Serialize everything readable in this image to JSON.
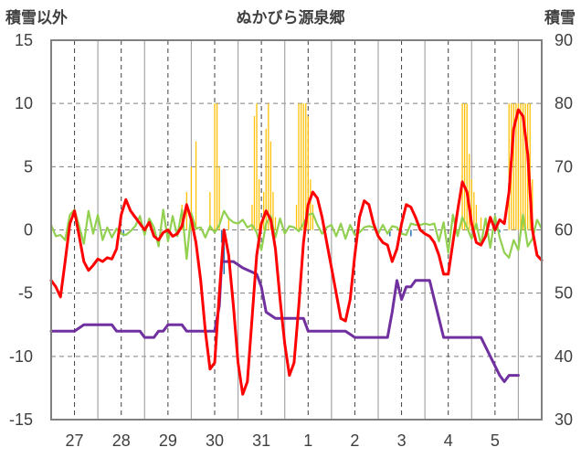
{
  "chart_data": {
    "type": "line",
    "title": "ぬかびら源泉郷",
    "y_left_label": "積雪以外",
    "y_right_label": "積雪",
    "y_left_ticks": [
      "15",
      "10",
      "5",
      "0",
      "-5",
      "-10",
      "-15"
    ],
    "y_right_ticks": [
      "90",
      "80",
      "70",
      "60",
      "50",
      "40",
      "30"
    ],
    "ylim_left": [
      -15,
      15
    ],
    "ylim_right": [
      30,
      90
    ],
    "x_tick_labels": [
      "27",
      "28",
      "29",
      "30",
      "31",
      "1",
      "2",
      "3",
      "4",
      "5"
    ],
    "xlim": [
      26.5,
      37.0
    ],
    "grid": true,
    "legend": "none",
    "colors": {
      "temperature": "#ff0000",
      "wind": "#92d050",
      "snow_depth": "#7030a0",
      "precipitation": "#ffc000",
      "negative_bars": "#2e75b6",
      "grid": "#808080",
      "frame": "#808080"
    },
    "series": [
      {
        "key": "temperature",
        "axis": "left",
        "points": [
          [
            26.5,
            -4
          ],
          [
            26.6,
            -4.5
          ],
          [
            26.7,
            -5.3
          ],
          [
            26.8,
            -2.5
          ],
          [
            26.9,
            0.5
          ],
          [
            27.0,
            1.5
          ],
          [
            27.1,
            -0.5
          ],
          [
            27.2,
            -2.5
          ],
          [
            27.3,
            -3.2
          ],
          [
            27.4,
            -2.8
          ],
          [
            27.5,
            -2.3
          ],
          [
            27.6,
            -2.5
          ],
          [
            27.7,
            -2.2
          ],
          [
            27.8,
            -2.3
          ],
          [
            27.9,
            -1.5
          ],
          [
            28.0,
            1.2
          ],
          [
            28.1,
            2.4
          ],
          [
            28.2,
            1.5
          ],
          [
            28.3,
            1
          ],
          [
            28.4,
            0.5
          ],
          [
            28.5,
            0
          ],
          [
            28.6,
            0.6
          ],
          [
            28.7,
            -0.5
          ],
          [
            28.8,
            -0.8
          ],
          [
            28.9,
            -0.2
          ],
          [
            29.0,
            0
          ],
          [
            29.1,
            -0.5
          ],
          [
            29.2,
            -0.3
          ],
          [
            29.3,
            0.3
          ],
          [
            29.4,
            2
          ],
          [
            29.5,
            0.8
          ],
          [
            29.6,
            -1
          ],
          [
            29.7,
            -4
          ],
          [
            29.8,
            -8
          ],
          [
            29.9,
            -11
          ],
          [
            30.0,
            -10.5
          ],
          [
            30.1,
            -5
          ],
          [
            30.2,
            0
          ],
          [
            30.3,
            -2
          ],
          [
            30.4,
            -6
          ],
          [
            30.5,
            -10.5
          ],
          [
            30.6,
            -13
          ],
          [
            30.7,
            -12
          ],
          [
            30.8,
            -7
          ],
          [
            30.9,
            -2
          ],
          [
            31.0,
            0.5
          ],
          [
            31.1,
            1.5
          ],
          [
            31.2,
            0.8
          ],
          [
            31.3,
            -1.5
          ],
          [
            31.4,
            -5.5
          ],
          [
            31.5,
            -9
          ],
          [
            31.6,
            -11.5
          ],
          [
            31.7,
            -10.5
          ],
          [
            31.8,
            -6
          ],
          [
            31.9,
            -1
          ],
          [
            32.0,
            2
          ],
          [
            32.1,
            3
          ],
          [
            32.2,
            2.5
          ],
          [
            32.3,
            1
          ],
          [
            32.4,
            -1
          ],
          [
            32.5,
            -3
          ],
          [
            32.6,
            -5
          ],
          [
            32.7,
            -7
          ],
          [
            32.8,
            -7.2
          ],
          [
            32.9,
            -5.5
          ],
          [
            33.0,
            -2
          ],
          [
            33.1,
            1
          ],
          [
            33.2,
            2.3
          ],
          [
            33.3,
            2
          ],
          [
            33.4,
            0.5
          ],
          [
            33.5,
            -0.5
          ],
          [
            33.6,
            -1
          ],
          [
            33.7,
            -1.2
          ],
          [
            33.8,
            -2.5
          ],
          [
            33.9,
            -1.5
          ],
          [
            34.0,
            0.5
          ],
          [
            34.1,
            2
          ],
          [
            34.2,
            1.8
          ],
          [
            34.3,
            1
          ],
          [
            34.4,
            0
          ],
          [
            34.5,
            -0.3
          ],
          [
            34.6,
            -0.5
          ],
          [
            34.7,
            -1
          ],
          [
            34.8,
            -2
          ],
          [
            34.9,
            -3.5
          ],
          [
            35.0,
            -3.5
          ],
          [
            35.1,
            -1
          ],
          [
            35.2,
            1.5
          ],
          [
            35.3,
            3.8
          ],
          [
            35.4,
            3
          ],
          [
            35.5,
            0.5
          ],
          [
            35.6,
            -1
          ],
          [
            35.7,
            -1.2
          ],
          [
            35.8,
            -0.5
          ],
          [
            35.9,
            1
          ],
          [
            36.0,
            0
          ],
          [
            36.1,
            0.8
          ],
          [
            36.2,
            0.5
          ],
          [
            36.3,
            3
          ],
          [
            36.4,
            8
          ],
          [
            36.5,
            9.5
          ],
          [
            36.6,
            9
          ],
          [
            36.7,
            6
          ],
          [
            36.8,
            0
          ],
          [
            36.9,
            -2
          ],
          [
            37.0,
            -2.4
          ]
        ]
      },
      {
        "key": "wind",
        "axis": "left",
        "points": [
          [
            26.5,
            0.4
          ],
          [
            26.6,
            -0.5
          ],
          [
            26.7,
            -0.4
          ],
          [
            26.8,
            -0.8
          ],
          [
            26.9,
            1.2
          ],
          [
            27.0,
            1.6
          ],
          [
            27.1,
            0.3
          ],
          [
            27.2,
            -1.1
          ],
          [
            27.3,
            1.5
          ],
          [
            27.4,
            -0.3
          ],
          [
            27.5,
            1.2
          ],
          [
            27.6,
            -0.8
          ],
          [
            27.7,
            0.2
          ],
          [
            27.8,
            -0.6
          ],
          [
            27.9,
            0.1
          ],
          [
            28.0,
            -0.3
          ],
          [
            28.1,
            -0.4
          ],
          [
            28.2,
            -0.1
          ],
          [
            28.3,
            0.3
          ],
          [
            28.4,
            1.1
          ],
          [
            28.5,
            -0.4
          ],
          [
            28.6,
            0.9
          ],
          [
            28.7,
            0.2
          ],
          [
            28.8,
            -1.3
          ],
          [
            28.9,
            1.6
          ],
          [
            29.0,
            -0.9
          ],
          [
            29.1,
            1.1
          ],
          [
            29.2,
            -0.5
          ],
          [
            29.3,
            1.6
          ],
          [
            29.4,
            -2.3
          ],
          [
            29.5,
            1.3
          ],
          [
            29.6,
            0.1
          ],
          [
            29.7,
            0.2
          ],
          [
            29.8,
            -0.6
          ],
          [
            29.9,
            0.3
          ],
          [
            30.0,
            -0.2
          ],
          [
            30.1,
            0.4
          ],
          [
            30.2,
            1.5
          ],
          [
            30.3,
            0.9
          ],
          [
            30.4,
            0.6
          ],
          [
            30.5,
            0.5
          ],
          [
            30.6,
            0.8
          ],
          [
            30.7,
            0.2
          ],
          [
            30.8,
            0.4
          ],
          [
            30.9,
            -0.2
          ],
          [
            31.0,
            -1.6
          ],
          [
            31.1,
            0.5
          ],
          [
            31.2,
            1.1
          ],
          [
            31.3,
            -0.6
          ],
          [
            31.4,
            0.9
          ],
          [
            31.5,
            -0.3
          ],
          [
            31.6,
            0.3
          ],
          [
            31.7,
            0.2
          ],
          [
            31.8,
            -0.1
          ],
          [
            31.9,
            0.5
          ],
          [
            32.0,
            1.2
          ],
          [
            32.1,
            1.3
          ],
          [
            32.2,
            0.4
          ],
          [
            32.3,
            -0.3
          ],
          [
            32.4,
            0.2
          ],
          [
            32.5,
            0.4
          ],
          [
            32.6,
            -0.5
          ],
          [
            32.7,
            0.5
          ],
          [
            32.8,
            -0.7
          ],
          [
            32.9,
            0.4
          ],
          [
            33.0,
            -0.4
          ],
          [
            33.1,
            -0.2
          ],
          [
            33.2,
            0.2
          ],
          [
            33.3,
            0.3
          ],
          [
            33.4,
            0.2
          ],
          [
            33.5,
            -0.3
          ],
          [
            33.6,
            0.4
          ],
          [
            33.7,
            -0.3
          ],
          [
            33.8,
            0.3
          ],
          [
            33.9,
            0.2
          ],
          [
            34.0,
            -0.3
          ],
          [
            34.1,
            -0.4
          ],
          [
            34.2,
            0.5
          ],
          [
            34.3,
            0.4
          ],
          [
            34.4,
            0.4
          ],
          [
            34.5,
            0.5
          ],
          [
            34.6,
            0.4
          ],
          [
            34.7,
            0.5
          ],
          [
            34.8,
            -0.9
          ],
          [
            34.9,
            0.6
          ],
          [
            35.0,
            -1.8
          ],
          [
            35.1,
            1.2
          ],
          [
            35.2,
            -0.5
          ],
          [
            35.3,
            1
          ],
          [
            35.4,
            0.2
          ],
          [
            35.5,
            -0.7
          ],
          [
            35.6,
            0.5
          ],
          [
            35.7,
            -1.2
          ],
          [
            35.8,
            0.9
          ],
          [
            35.9,
            -1.4
          ],
          [
            36.0,
            1.1
          ],
          [
            36.1,
            -0.6
          ],
          [
            36.2,
            -1.8
          ],
          [
            36.3,
            -2.2
          ],
          [
            36.4,
            -0.8
          ],
          [
            36.5,
            -1.6
          ],
          [
            36.6,
            1.2
          ],
          [
            36.7,
            -1.3
          ],
          [
            36.8,
            -0.7
          ],
          [
            36.9,
            0.8
          ],
          [
            37.0,
            0.1
          ]
        ]
      },
      {
        "key": "snow_depth",
        "axis": "right",
        "points": [
          [
            26.5,
            44
          ],
          [
            27.0,
            44
          ],
          [
            27.2,
            45
          ],
          [
            27.8,
            45
          ],
          [
            27.9,
            44
          ],
          [
            28.4,
            44
          ],
          [
            28.5,
            43
          ],
          [
            28.7,
            43
          ],
          [
            28.8,
            44
          ],
          [
            28.9,
            44
          ],
          [
            29.0,
            45
          ],
          [
            29.3,
            45
          ],
          [
            29.4,
            44
          ],
          [
            29.9,
            44
          ],
          [
            30.0,
            44
          ],
          [
            30.1,
            48
          ],
          [
            30.15,
            55
          ],
          [
            30.4,
            55
          ],
          [
            30.6,
            54
          ],
          [
            30.9,
            53
          ],
          [
            31.0,
            51
          ],
          [
            31.1,
            47
          ],
          [
            31.3,
            46
          ],
          [
            31.9,
            46
          ],
          [
            32.0,
            44
          ],
          [
            32.8,
            44
          ],
          [
            33.0,
            43
          ],
          [
            33.7,
            43
          ],
          [
            33.8,
            47
          ],
          [
            33.9,
            52
          ],
          [
            34.0,
            49
          ],
          [
            34.1,
            51
          ],
          [
            34.2,
            51
          ],
          [
            34.3,
            52
          ],
          [
            34.6,
            52
          ],
          [
            34.7,
            49
          ],
          [
            34.9,
            43
          ],
          [
            35.7,
            43
          ],
          [
            35.9,
            40
          ],
          [
            36.1,
            37
          ],
          [
            36.2,
            36
          ],
          [
            36.3,
            37
          ],
          [
            36.5,
            37
          ]
        ]
      },
      {
        "key": "precipitation",
        "axis": "left",
        "bar_width": 0.025,
        "points": [
          [
            29.3,
            2
          ],
          [
            29.4,
            3
          ],
          [
            29.5,
            5
          ],
          [
            29.6,
            7
          ],
          [
            29.9,
            3
          ],
          [
            30.0,
            10
          ],
          [
            30.05,
            10
          ],
          [
            30.1,
            5
          ],
          [
            30.3,
            1
          ],
          [
            30.8,
            2
          ],
          [
            30.85,
            9
          ],
          [
            30.9,
            10
          ],
          [
            30.95,
            4
          ],
          [
            31.05,
            3
          ],
          [
            31.1,
            8
          ],
          [
            31.15,
            10
          ],
          [
            31.2,
            7
          ],
          [
            31.25,
            3
          ],
          [
            31.3,
            1
          ],
          [
            31.75,
            2
          ],
          [
            31.8,
            10
          ],
          [
            31.85,
            10
          ],
          [
            31.9,
            10
          ],
          [
            31.95,
            10
          ],
          [
            32.0,
            9
          ],
          [
            32.05,
            4
          ],
          [
            32.1,
            2
          ],
          [
            35.3,
            10
          ],
          [
            35.35,
            10
          ],
          [
            35.4,
            10
          ],
          [
            35.45,
            6
          ],
          [
            35.5,
            4
          ],
          [
            35.55,
            3
          ],
          [
            35.6,
            2
          ],
          [
            35.7,
            1
          ],
          [
            36.3,
            10
          ],
          [
            36.35,
            10
          ],
          [
            36.4,
            10
          ],
          [
            36.45,
            10
          ],
          [
            36.5,
            10
          ],
          [
            36.55,
            10
          ],
          [
            36.6,
            10
          ],
          [
            36.65,
            10
          ],
          [
            36.7,
            10
          ],
          [
            36.75,
            10
          ],
          [
            36.8,
            4
          ]
        ]
      },
      {
        "key": "negative_bars",
        "axis": "left",
        "bar_width": 0.03,
        "points": [
          [
            28.05,
            -0.5
          ],
          [
            30.15,
            -1
          ],
          [
            30.2,
            -3.5
          ],
          [
            33.75,
            -0.5
          ],
          [
            34.0,
            -0.3
          ],
          [
            34.2,
            -0.5
          ],
          [
            36.1,
            -0.2
          ]
        ]
      }
    ]
  }
}
